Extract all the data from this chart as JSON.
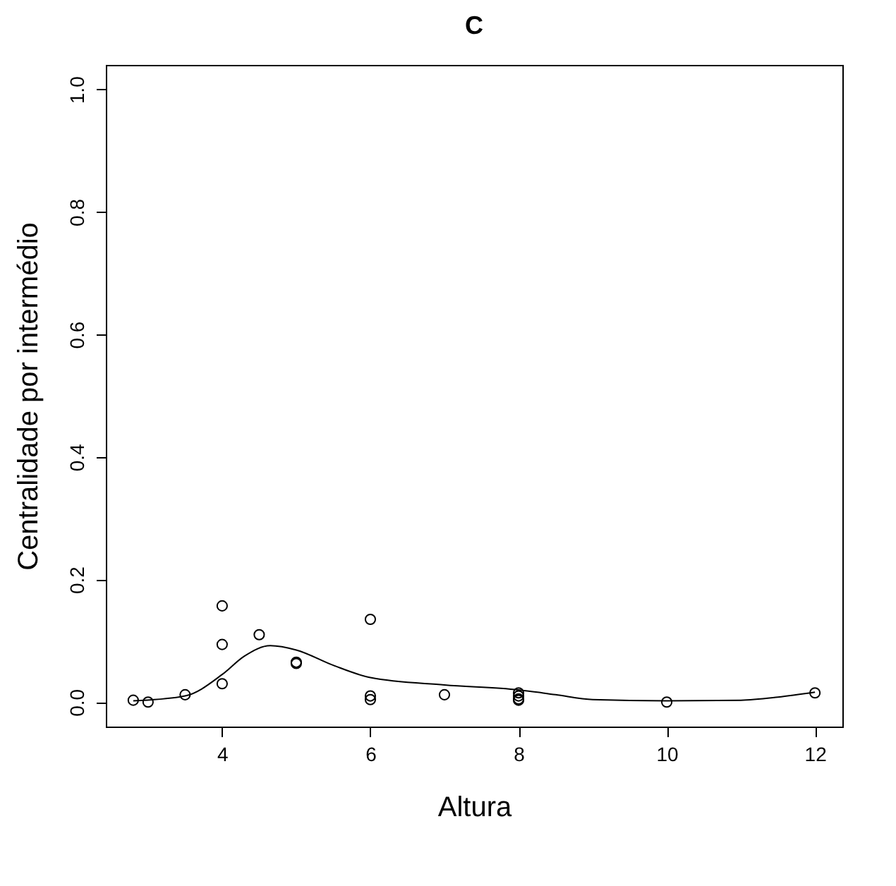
{
  "chart_data": {
    "type": "scatter",
    "title": "C",
    "xlabel": "Altura",
    "ylabel": "Centralidade por intermédio",
    "xlim": [
      2.43,
      12.37
    ],
    "ylim": [
      -0.04,
      1.04
    ],
    "xticks": [
      4,
      6,
      8,
      10,
      12
    ],
    "yticks": [
      {
        "value": 0,
        "label": "0.0"
      },
      {
        "value": 0.2,
        "label": "0.2"
      },
      {
        "value": 0.4,
        "label": "0.4"
      },
      {
        "value": 0.6,
        "label": "0.6"
      },
      {
        "value": 0.8,
        "label": "0.8"
      },
      {
        "value": 1,
        "label": "1.0"
      }
    ],
    "grid": false,
    "marker": "circle",
    "series": [
      {
        "color": "#000000",
        "x": [
          2.8,
          3,
          3.5,
          4,
          4,
          4,
          4.5,
          5,
          5,
          6,
          6,
          6,
          7,
          8,
          8,
          8,
          8,
          10,
          12
        ],
        "values": [
          0.003,
          0,
          0.012,
          0.157,
          0.094,
          0.03,
          0.11,
          0.065,
          0.063,
          0.135,
          0.01,
          0.004,
          0.012,
          0.015,
          0.01,
          0.005,
          0.003,
          0,
          0.015
        ]
      },
      {
        "type": "line",
        "color": "#000000",
        "line_style": "solid",
        "marker": "none",
        "x": [
          2.8,
          3.5,
          4,
          4.3,
          4.65,
          5,
          5.5,
          6,
          7,
          8,
          8.5,
          9,
          10,
          11,
          11.5,
          12
        ],
        "values": [
          0.002,
          0.01,
          0.045,
          0.075,
          0.092,
          0.085,
          0.06,
          0.04,
          0.028,
          0.02,
          0.012,
          0.004,
          0.002,
          0.003,
          0.008,
          0.016
        ]
      }
    ]
  }
}
